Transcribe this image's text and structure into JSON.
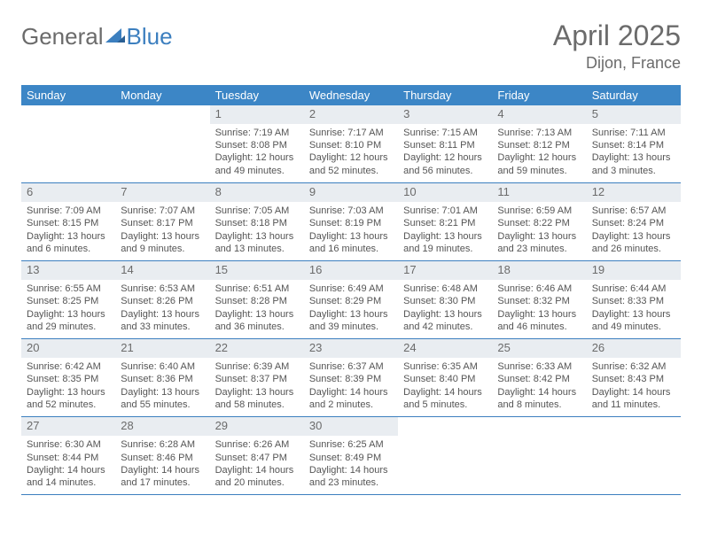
{
  "brand": {
    "part1": "General",
    "part2": "Blue"
  },
  "title": "April 2025",
  "location": "Dijon, France",
  "colors": {
    "header_bg": "#3c86c6",
    "header_text": "#ffffff",
    "daynum_bg": "#e9edf1",
    "border": "#3c7fbf",
    "text": "#555555",
    "title_text": "#6b6b6b"
  },
  "day_names": [
    "Sunday",
    "Monday",
    "Tuesday",
    "Wednesday",
    "Thursday",
    "Friday",
    "Saturday"
  ],
  "weeks": [
    [
      {
        "empty": true
      },
      {
        "empty": true
      },
      {
        "day": "1",
        "sunrise": "Sunrise: 7:19 AM",
        "sunset": "Sunset: 8:08 PM",
        "daylight": "Daylight: 12 hours and 49 minutes."
      },
      {
        "day": "2",
        "sunrise": "Sunrise: 7:17 AM",
        "sunset": "Sunset: 8:10 PM",
        "daylight": "Daylight: 12 hours and 52 minutes."
      },
      {
        "day": "3",
        "sunrise": "Sunrise: 7:15 AM",
        "sunset": "Sunset: 8:11 PM",
        "daylight": "Daylight: 12 hours and 56 minutes."
      },
      {
        "day": "4",
        "sunrise": "Sunrise: 7:13 AM",
        "sunset": "Sunset: 8:12 PM",
        "daylight": "Daylight: 12 hours and 59 minutes."
      },
      {
        "day": "5",
        "sunrise": "Sunrise: 7:11 AM",
        "sunset": "Sunset: 8:14 PM",
        "daylight": "Daylight: 13 hours and 3 minutes."
      }
    ],
    [
      {
        "day": "6",
        "sunrise": "Sunrise: 7:09 AM",
        "sunset": "Sunset: 8:15 PM",
        "daylight": "Daylight: 13 hours and 6 minutes."
      },
      {
        "day": "7",
        "sunrise": "Sunrise: 7:07 AM",
        "sunset": "Sunset: 8:17 PM",
        "daylight": "Daylight: 13 hours and 9 minutes."
      },
      {
        "day": "8",
        "sunrise": "Sunrise: 7:05 AM",
        "sunset": "Sunset: 8:18 PM",
        "daylight": "Daylight: 13 hours and 13 minutes."
      },
      {
        "day": "9",
        "sunrise": "Sunrise: 7:03 AM",
        "sunset": "Sunset: 8:19 PM",
        "daylight": "Daylight: 13 hours and 16 minutes."
      },
      {
        "day": "10",
        "sunrise": "Sunrise: 7:01 AM",
        "sunset": "Sunset: 8:21 PM",
        "daylight": "Daylight: 13 hours and 19 minutes."
      },
      {
        "day": "11",
        "sunrise": "Sunrise: 6:59 AM",
        "sunset": "Sunset: 8:22 PM",
        "daylight": "Daylight: 13 hours and 23 minutes."
      },
      {
        "day": "12",
        "sunrise": "Sunrise: 6:57 AM",
        "sunset": "Sunset: 8:24 PM",
        "daylight": "Daylight: 13 hours and 26 minutes."
      }
    ],
    [
      {
        "day": "13",
        "sunrise": "Sunrise: 6:55 AM",
        "sunset": "Sunset: 8:25 PM",
        "daylight": "Daylight: 13 hours and 29 minutes."
      },
      {
        "day": "14",
        "sunrise": "Sunrise: 6:53 AM",
        "sunset": "Sunset: 8:26 PM",
        "daylight": "Daylight: 13 hours and 33 minutes."
      },
      {
        "day": "15",
        "sunrise": "Sunrise: 6:51 AM",
        "sunset": "Sunset: 8:28 PM",
        "daylight": "Daylight: 13 hours and 36 minutes."
      },
      {
        "day": "16",
        "sunrise": "Sunrise: 6:49 AM",
        "sunset": "Sunset: 8:29 PM",
        "daylight": "Daylight: 13 hours and 39 minutes."
      },
      {
        "day": "17",
        "sunrise": "Sunrise: 6:48 AM",
        "sunset": "Sunset: 8:30 PM",
        "daylight": "Daylight: 13 hours and 42 minutes."
      },
      {
        "day": "18",
        "sunrise": "Sunrise: 6:46 AM",
        "sunset": "Sunset: 8:32 PM",
        "daylight": "Daylight: 13 hours and 46 minutes."
      },
      {
        "day": "19",
        "sunrise": "Sunrise: 6:44 AM",
        "sunset": "Sunset: 8:33 PM",
        "daylight": "Daylight: 13 hours and 49 minutes."
      }
    ],
    [
      {
        "day": "20",
        "sunrise": "Sunrise: 6:42 AM",
        "sunset": "Sunset: 8:35 PM",
        "daylight": "Daylight: 13 hours and 52 minutes."
      },
      {
        "day": "21",
        "sunrise": "Sunrise: 6:40 AM",
        "sunset": "Sunset: 8:36 PM",
        "daylight": "Daylight: 13 hours and 55 minutes."
      },
      {
        "day": "22",
        "sunrise": "Sunrise: 6:39 AM",
        "sunset": "Sunset: 8:37 PM",
        "daylight": "Daylight: 13 hours and 58 minutes."
      },
      {
        "day": "23",
        "sunrise": "Sunrise: 6:37 AM",
        "sunset": "Sunset: 8:39 PM",
        "daylight": "Daylight: 14 hours and 2 minutes."
      },
      {
        "day": "24",
        "sunrise": "Sunrise: 6:35 AM",
        "sunset": "Sunset: 8:40 PM",
        "daylight": "Daylight: 14 hours and 5 minutes."
      },
      {
        "day": "25",
        "sunrise": "Sunrise: 6:33 AM",
        "sunset": "Sunset: 8:42 PM",
        "daylight": "Daylight: 14 hours and 8 minutes."
      },
      {
        "day": "26",
        "sunrise": "Sunrise: 6:32 AM",
        "sunset": "Sunset: 8:43 PM",
        "daylight": "Daylight: 14 hours and 11 minutes."
      }
    ],
    [
      {
        "day": "27",
        "sunrise": "Sunrise: 6:30 AM",
        "sunset": "Sunset: 8:44 PM",
        "daylight": "Daylight: 14 hours and 14 minutes."
      },
      {
        "day": "28",
        "sunrise": "Sunrise: 6:28 AM",
        "sunset": "Sunset: 8:46 PM",
        "daylight": "Daylight: 14 hours and 17 minutes."
      },
      {
        "day": "29",
        "sunrise": "Sunrise: 6:26 AM",
        "sunset": "Sunset: 8:47 PM",
        "daylight": "Daylight: 14 hours and 20 minutes."
      },
      {
        "day": "30",
        "sunrise": "Sunrise: 6:25 AM",
        "sunset": "Sunset: 8:49 PM",
        "daylight": "Daylight: 14 hours and 23 minutes."
      },
      {
        "empty": true
      },
      {
        "empty": true
      },
      {
        "empty": true
      }
    ]
  ]
}
